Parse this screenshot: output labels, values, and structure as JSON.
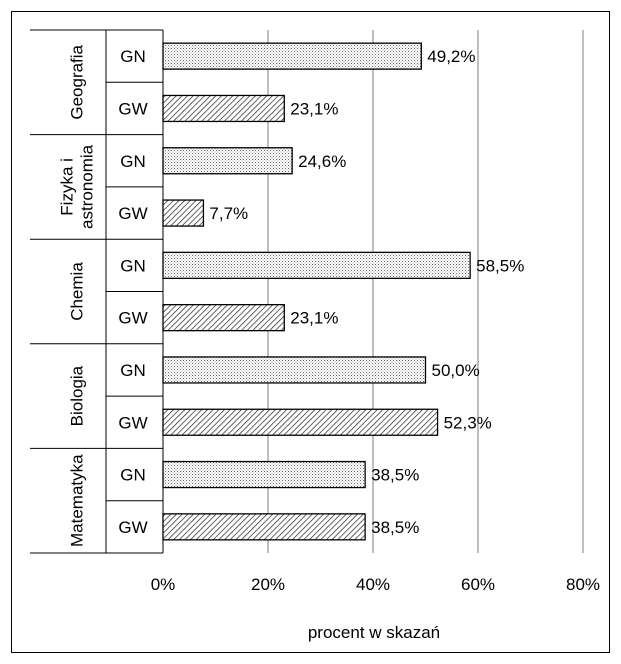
{
  "chart_data": {
    "type": "bar",
    "orientation": "horizontal",
    "title": "",
    "xlabel": "procent w skazań",
    "ylabel": "",
    "xlim": [
      0,
      80
    ],
    "x_ticks": [
      "0%",
      "20%",
      "40%",
      "60%",
      "80%"
    ],
    "grid": "vertical",
    "legend": "none",
    "groups": [
      {
        "name": "Geografia",
        "label_lines": [
          "Geografia"
        ]
      },
      {
        "name": "Fizyka i astronomia",
        "label_lines": [
          "Fizyka i",
          "astronomia"
        ]
      },
      {
        "name": "Chemia",
        "label_lines": [
          "Chemia"
        ]
      },
      {
        "name": "Biologia",
        "label_lines": [
          "Biologia"
        ]
      },
      {
        "name": "Matematyka",
        "label_lines": [
          "Matematyka"
        ]
      }
    ],
    "subcategories": [
      "GN",
      "GW"
    ],
    "bars": [
      {
        "group": "Geografia",
        "sub": "GN",
        "value": 49.2,
        "label": "49,2%"
      },
      {
        "group": "Geografia",
        "sub": "GW",
        "value": 23.1,
        "label": "23,1%"
      },
      {
        "group": "Fizyka i astronomia",
        "sub": "GN",
        "value": 24.6,
        "label": "24,6%"
      },
      {
        "group": "Fizyka i astronomia",
        "sub": "GW",
        "value": 7.7,
        "label": "7,7%"
      },
      {
        "group": "Chemia",
        "sub": "GN",
        "value": 58.5,
        "label": "58,5%"
      },
      {
        "group": "Chemia",
        "sub": "GW",
        "value": 23.1,
        "label": "23,1%"
      },
      {
        "group": "Biologia",
        "sub": "GN",
        "value": 50.0,
        "label": "50,0%"
      },
      {
        "group": "Biologia",
        "sub": "GW",
        "value": 52.3,
        "label": "52,3%"
      },
      {
        "group": "Matematyka",
        "sub": "GN",
        "value": 38.5,
        "label": "38,5%"
      },
      {
        "group": "Matematyka",
        "sub": "GW",
        "value": 38.5,
        "label": "38,5%"
      }
    ],
    "patterns": {
      "GN": "dotted",
      "GW": "diagonal-hatch"
    }
  }
}
